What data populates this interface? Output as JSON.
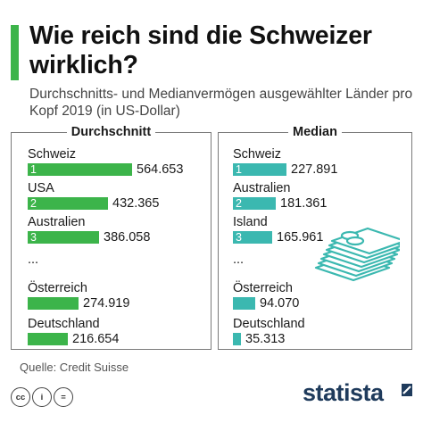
{
  "title": "Wie reich sind die Schweizer wirklich?",
  "subtitle": "Durchschnitts- und Medianvermögen ausgewählter Länder pro Kopf 2019 (in US-Dollar)",
  "source": "Quelle: Credit Suisse",
  "brand": "statista",
  "license_icons": [
    "cc-icon",
    "person-icon",
    "equals-icon"
  ],
  "license_text": [
    "cc",
    "i",
    "="
  ],
  "colors": {
    "average_bar": "#3cb44a",
    "median_bar": "#3bb8b0",
    "title_accent": "#3cb44a",
    "money_icon": "#3bb8b0",
    "brand": "#1f3b5c"
  },
  "ellipsis": "...",
  "chart_data": [
    {
      "type": "bar",
      "title": "Durchschnitt",
      "unit": "US-Dollar",
      "categories": [
        "Schweiz",
        "USA",
        "Australien",
        "Österreich",
        "Deutschland"
      ],
      "ranks": [
        "1",
        "2",
        "3",
        "",
        ""
      ],
      "values": [
        564653,
        432365,
        386058,
        274919,
        216654
      ],
      "value_labels": [
        "564.653",
        "432.365",
        "386.058",
        "274.919",
        "216.654"
      ]
    },
    {
      "type": "bar",
      "title": "Median",
      "unit": "US-Dollar",
      "categories": [
        "Schweiz",
        "Australien",
        "Island",
        "Österreich",
        "Deutschland"
      ],
      "ranks": [
        "1",
        "2",
        "3",
        "",
        ""
      ],
      "values": [
        227891,
        181361,
        165961,
        94070,
        35313
      ],
      "value_labels": [
        "227.891",
        "181.361",
        "165.961",
        "94.070",
        "35.313"
      ]
    }
  ]
}
